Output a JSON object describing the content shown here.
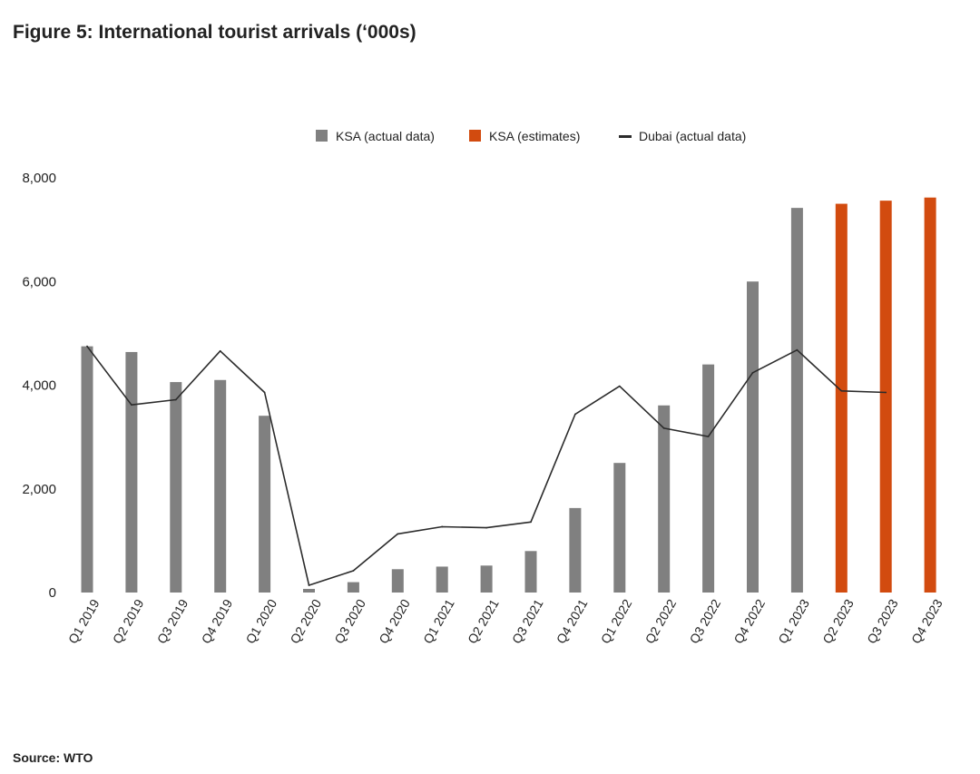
{
  "title": "Figure 5: International tourist arrivals (‘000s)",
  "source": "Source: WTO",
  "colors": {
    "ksa_actual": "#808080",
    "ksa_estimates": "#d24b0f",
    "dubai": "#2b2b2b"
  },
  "chart_data": {
    "type": "bar",
    "title": "Figure 5: International tourist arrivals (‘000s)",
    "categories": [
      "Q1 2019",
      "Q2 2019",
      "Q3 2019",
      "Q4 2019",
      "Q1 2020",
      "Q2 2020",
      "Q3 2020",
      "Q4 2020",
      "Q1 2021",
      "Q2 2021",
      "Q3 2021",
      "Q4 2021",
      "Q1 2022",
      "Q2 2022",
      "Q3 2022",
      "Q4 2022",
      "Q1 2023",
      "Q2 2023",
      "Q3 2023",
      "Q4 2023"
    ],
    "series": [
      {
        "name": "KSA (actual data)",
        "kind": "bar",
        "values": [
          4750,
          4640,
          4060,
          4100,
          3410,
          70,
          200,
          450,
          500,
          520,
          800,
          1630,
          2500,
          3610,
          4400,
          6000,
          7420,
          null,
          null,
          null
        ]
      },
      {
        "name": "KSA (estimates)",
        "kind": "bar",
        "values": [
          null,
          null,
          null,
          null,
          null,
          null,
          null,
          null,
          null,
          null,
          null,
          null,
          null,
          null,
          null,
          null,
          null,
          7500,
          7560,
          7620
        ]
      },
      {
        "name": "Dubai (actual data)",
        "kind": "line",
        "values": [
          4750,
          3620,
          3720,
          4660,
          3860,
          140,
          420,
          1130,
          1270,
          1250,
          1360,
          3440,
          3980,
          3170,
          3010,
          4240,
          4680,
          3890,
          3860,
          null
        ]
      }
    ],
    "ylim": [
      0,
      8000
    ],
    "yticks": [
      0,
      2000,
      4000,
      6000,
      8000
    ],
    "ytick_labels": [
      "0",
      "2,000",
      "4,000",
      "6,000",
      "8,000"
    ],
    "legend": "top-center",
    "grid": false,
    "xlabel": "",
    "ylabel": ""
  }
}
